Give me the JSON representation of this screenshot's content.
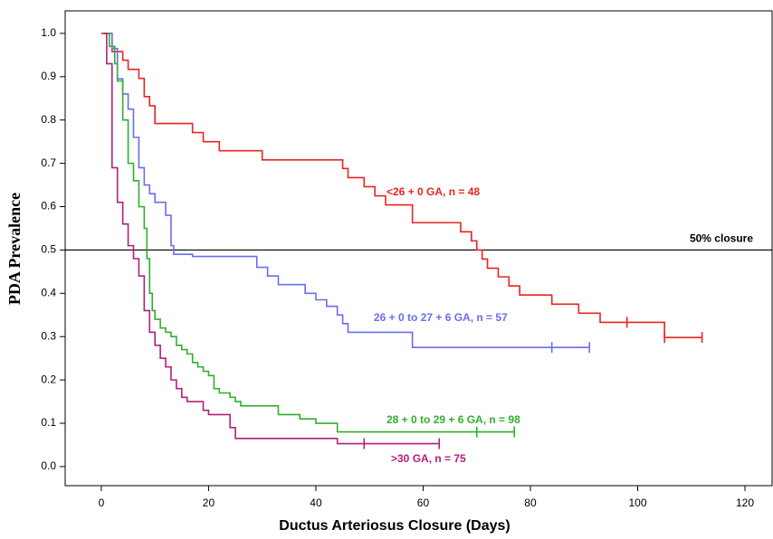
{
  "chart_data": {
    "type": "step",
    "xlabel": "Ductus Arteriosus Closure (Days)",
    "ylabel": "PDA Prevalence",
    "xlim": [
      -6.74,
      125.06
    ],
    "ylim": [
      -0.044,
      1.052
    ],
    "xticks": [
      0,
      20,
      40,
      60,
      80,
      100,
      120
    ],
    "yticks": [
      {
        "value": 0,
        "label": "0.0"
      },
      0.1,
      0.2,
      0.3,
      0.4,
      0.5,
      0.6,
      0.7,
      0.8,
      0.9,
      {
        "value": 1,
        "label": "1.0"
      }
    ],
    "grid": false,
    "hlines": [
      {
        "y": 0.5,
        "label": "50% closure",
        "color": "#000000"
      }
    ],
    "series": [
      {
        "name": "<26 + 0 GA, n = 48",
        "color": "#e8251f",
        "x": [
          0,
          2,
          4,
          5,
          7,
          8,
          9,
          10,
          17,
          19,
          22,
          30,
          45,
          46,
          49,
          51,
          53,
          58,
          67,
          69,
          70,
          71,
          72,
          74,
          76,
          78,
          84,
          89,
          93,
          105,
          112
        ],
        "values": [
          1.0,
          0.958,
          0.938,
          0.917,
          0.896,
          0.854,
          0.833,
          0.792,
          0.771,
          0.75,
          0.729,
          0.708,
          0.688,
          0.667,
          0.646,
          0.625,
          0.604,
          0.563,
          0.542,
          0.521,
          0.5,
          0.479,
          0.458,
          0.438,
          0.417,
          0.396,
          0.375,
          0.354,
          0.333,
          0.298,
          0.298
        ],
        "censor_x": [
          98,
          105,
          112
        ],
        "censor_y": [
          0.333,
          0.298,
          0.298
        ]
      },
      {
        "name": "26 + 0 to 27 + 6 GA, n = 57",
        "color": "#6b6cf0",
        "x": [
          1,
          2,
          3,
          4,
          5,
          6,
          7,
          8,
          9,
          10,
          12,
          13,
          13.5,
          17,
          29,
          31,
          33,
          38,
          40,
          42,
          44,
          45,
          46,
          58,
          91
        ],
        "values": [
          1.0,
          0.965,
          0.895,
          0.86,
          0.825,
          0.76,
          0.69,
          0.65,
          0.63,
          0.61,
          0.58,
          0.51,
          0.49,
          0.485,
          0.46,
          0.44,
          0.42,
          0.4,
          0.385,
          0.37,
          0.35,
          0.33,
          0.31,
          0.275,
          0.275
        ],
        "censor_x": [
          84,
          91
        ],
        "censor_y": [
          0.275,
          0.275
        ]
      },
      {
        "name": "28 + 0 to 29 + 6 GA, n = 98",
        "color": "#2fb02f",
        "x": [
          1,
          1.5,
          2.5,
          3,
          4,
          5,
          6,
          7,
          8,
          8.5,
          9,
          9.5,
          10,
          11,
          12,
          13,
          14,
          15,
          16,
          17,
          18,
          19,
          20,
          21,
          22,
          24,
          25,
          26,
          33,
          37,
          40,
          44,
          77
        ],
        "values": [
          1.0,
          0.97,
          0.93,
          0.89,
          0.8,
          0.7,
          0.66,
          0.6,
          0.55,
          0.48,
          0.4,
          0.36,
          0.34,
          0.32,
          0.31,
          0.3,
          0.28,
          0.27,
          0.26,
          0.24,
          0.23,
          0.22,
          0.21,
          0.18,
          0.17,
          0.16,
          0.15,
          0.14,
          0.12,
          0.11,
          0.1,
          0.08,
          0.08
        ],
        "censor_x": [
          70,
          77
        ],
        "censor_y": [
          0.08,
          0.08
        ]
      },
      {
        "name": ">30 GA, n = 75",
        "color": "#b0207a",
        "x": [
          0.5,
          1,
          2,
          3,
          4,
          5,
          6,
          7,
          8,
          9,
          10,
          11,
          12,
          13,
          14,
          15,
          16,
          19,
          20,
          24,
          25,
          44,
          63
        ],
        "values": [
          1.0,
          0.93,
          0.69,
          0.61,
          0.56,
          0.51,
          0.48,
          0.44,
          0.36,
          0.31,
          0.28,
          0.25,
          0.23,
          0.2,
          0.18,
          0.16,
          0.15,
          0.13,
          0.12,
          0.09,
          0.065,
          0.053,
          0.053
        ],
        "censor_x": [
          49,
          63
        ],
        "censor_y": [
          0.053,
          0.053
        ]
      }
    ]
  }
}
